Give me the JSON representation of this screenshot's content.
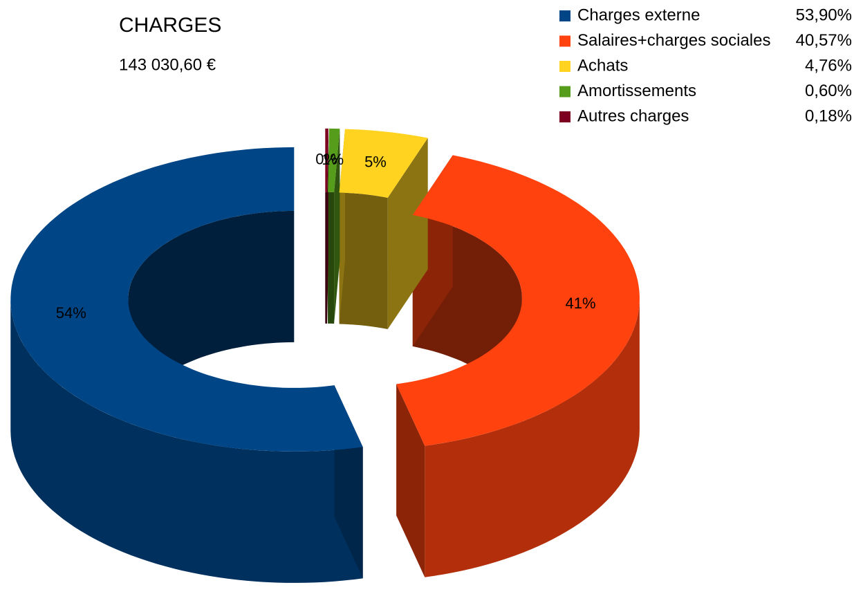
{
  "chart_data": {
    "type": "donut3d",
    "title": "CHARGES",
    "subtitle": "143 030,60 €",
    "categories": [
      "Charges externe",
      "Salaires+charges sociales",
      "Achats",
      "Amortissements",
      "Autres charges"
    ],
    "values": [
      53.9,
      40.57,
      4.76,
      0.6,
      0.18
    ],
    "value_labels": [
      "53,90%",
      "40,57%",
      "4,76%",
      "0,60%",
      "0,18%"
    ],
    "data_labels": [
      "54%",
      "41%",
      "5%",
      "1%",
      "0%"
    ],
    "colors": [
      "#004586",
      "#ff420e",
      "#ffd320",
      "#579d1c",
      "#7e0021"
    ],
    "legend": "top-right"
  }
}
